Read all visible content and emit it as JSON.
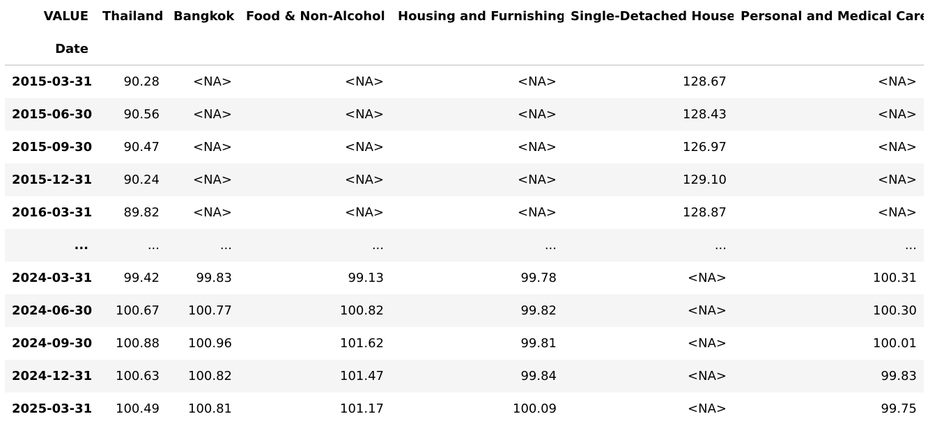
{
  "table": {
    "columns_label": "VALUE",
    "index_label": "Date",
    "columns": [
      "Thailand",
      "Bangkok",
      "Food & Non-Alcohol",
      "Housing and Furnishing",
      "Single-Detached House",
      "Personal and Medical Care"
    ],
    "rows": [
      {
        "index": "2015-03-31",
        "cells": [
          "90.28",
          "<NA>",
          "<NA>",
          "<NA>",
          "128.67",
          "<NA>"
        ]
      },
      {
        "index": "2015-06-30",
        "cells": [
          "90.56",
          "<NA>",
          "<NA>",
          "<NA>",
          "128.43",
          "<NA>"
        ]
      },
      {
        "index": "2015-09-30",
        "cells": [
          "90.47",
          "<NA>",
          "<NA>",
          "<NA>",
          "126.97",
          "<NA>"
        ]
      },
      {
        "index": "2015-12-31",
        "cells": [
          "90.24",
          "<NA>",
          "<NA>",
          "<NA>",
          "129.10",
          "<NA>"
        ]
      },
      {
        "index": "2016-03-31",
        "cells": [
          "89.82",
          "<NA>",
          "<NA>",
          "<NA>",
          "128.87",
          "<NA>"
        ]
      },
      {
        "index": "...",
        "cells": [
          "...",
          "...",
          "...",
          "...",
          "...",
          "..."
        ]
      },
      {
        "index": "2024-03-31",
        "cells": [
          "99.42",
          "99.83",
          "99.13",
          "99.78",
          "<NA>",
          "100.31"
        ]
      },
      {
        "index": "2024-06-30",
        "cells": [
          "100.67",
          "100.77",
          "100.82",
          "99.82",
          "<NA>",
          "100.30"
        ]
      },
      {
        "index": "2024-09-30",
        "cells": [
          "100.88",
          "100.96",
          "101.62",
          "99.81",
          "<NA>",
          "100.01"
        ]
      },
      {
        "index": "2024-12-31",
        "cells": [
          "100.63",
          "100.82",
          "101.47",
          "99.84",
          "<NA>",
          "99.83"
        ]
      },
      {
        "index": "2025-03-31",
        "cells": [
          "100.49",
          "100.81",
          "101.17",
          "100.09",
          "<NA>",
          "99.75"
        ]
      }
    ]
  }
}
